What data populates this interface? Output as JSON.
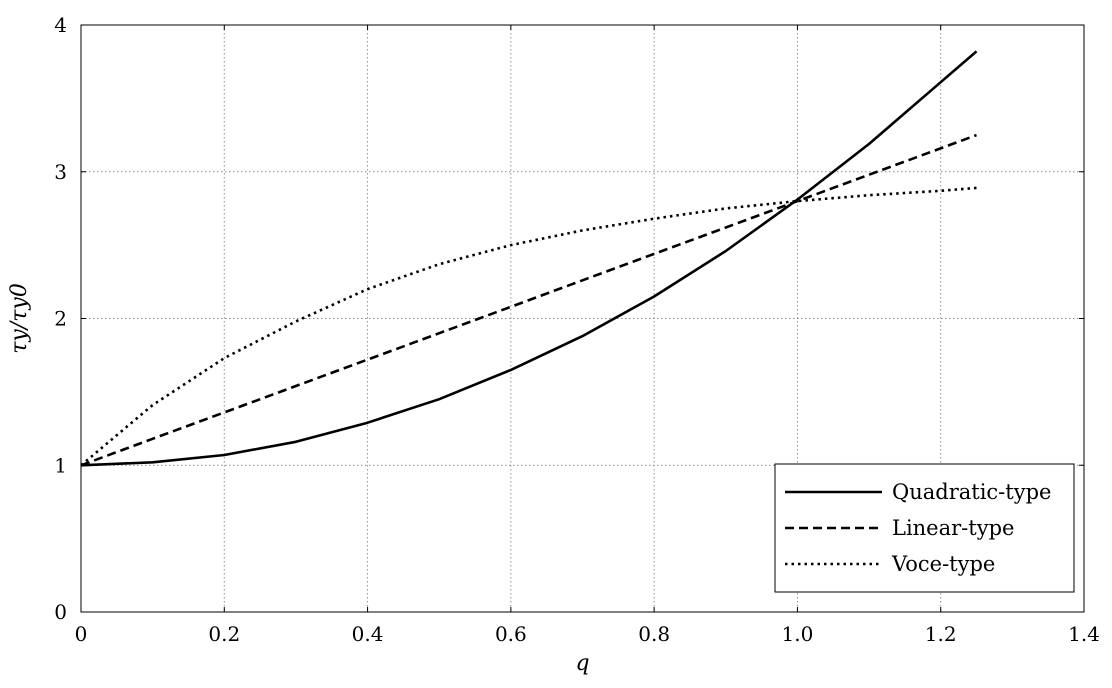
{
  "chart_data": {
    "type": "line",
    "xlabel": "q",
    "ylabel": "τy/τy0",
    "xlim": [
      0,
      1.4
    ],
    "ylim": [
      0,
      4
    ],
    "xticks": [
      0,
      0.2,
      0.4,
      0.6,
      0.8,
      1.0,
      1.2,
      1.4
    ],
    "xtick_labels": [
      "0",
      "0.2",
      "0.4",
      "0.6",
      "0.8",
      "1.0",
      "1.2",
      "1.4"
    ],
    "yticks": [
      0,
      1,
      2,
      3,
      4
    ],
    "ytick_labels": [
      "0",
      "1",
      "2",
      "3",
      "4"
    ],
    "grid": true,
    "legend_position": "bottom-right",
    "x": [
      0,
      0.1,
      0.2,
      0.3,
      0.4,
      0.5,
      0.6,
      0.7,
      0.8,
      0.9,
      1.0,
      1.1,
      1.2,
      1.25
    ],
    "series": [
      {
        "name": "Quadratic-type",
        "style": "solid",
        "color": "#000000",
        "values": [
          1.0,
          1.02,
          1.07,
          1.16,
          1.29,
          1.45,
          1.65,
          1.88,
          2.15,
          2.46,
          2.81,
          3.19,
          3.61,
          3.82
        ]
      },
      {
        "name": "Linear-type",
        "style": "dashed",
        "color": "#000000",
        "values": [
          1.0,
          1.18,
          1.36,
          1.54,
          1.72,
          1.9,
          2.08,
          2.26,
          2.44,
          2.62,
          2.8,
          2.98,
          3.16,
          3.25
        ]
      },
      {
        "name": "Voce-type",
        "style": "dotted",
        "color": "#000000",
        "values": [
          1.0,
          1.41,
          1.73,
          1.98,
          2.2,
          2.37,
          2.5,
          2.6,
          2.68,
          2.75,
          2.8,
          2.84,
          2.87,
          2.89
        ]
      }
    ]
  }
}
